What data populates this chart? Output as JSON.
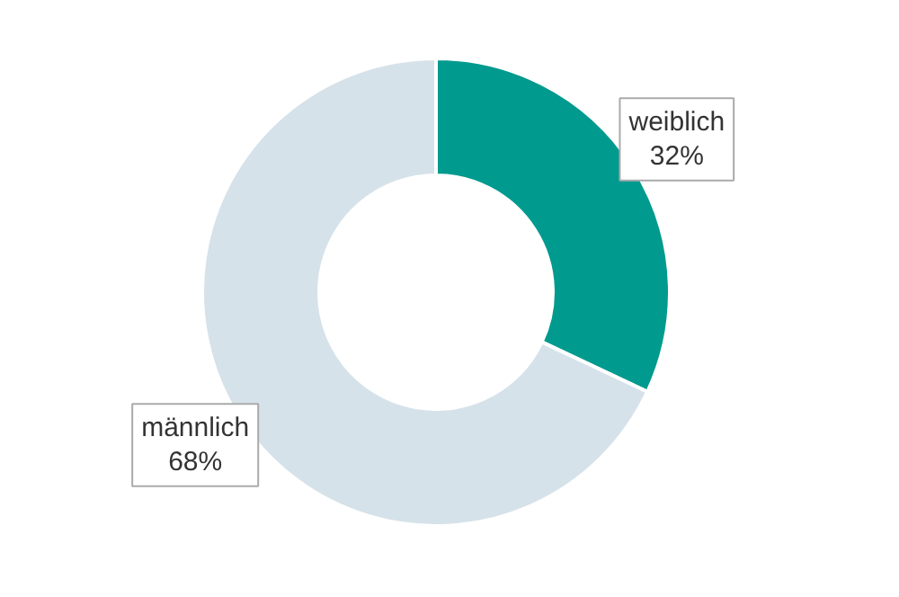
{
  "chart_data": {
    "type": "donut",
    "categories": [
      "weiblich",
      "männlich"
    ],
    "values": [
      32,
      68
    ],
    "colors": [
      "#009a8e",
      "#d6e2ea"
    ],
    "value_labels": [
      "32%",
      "68%"
    ]
  }
}
